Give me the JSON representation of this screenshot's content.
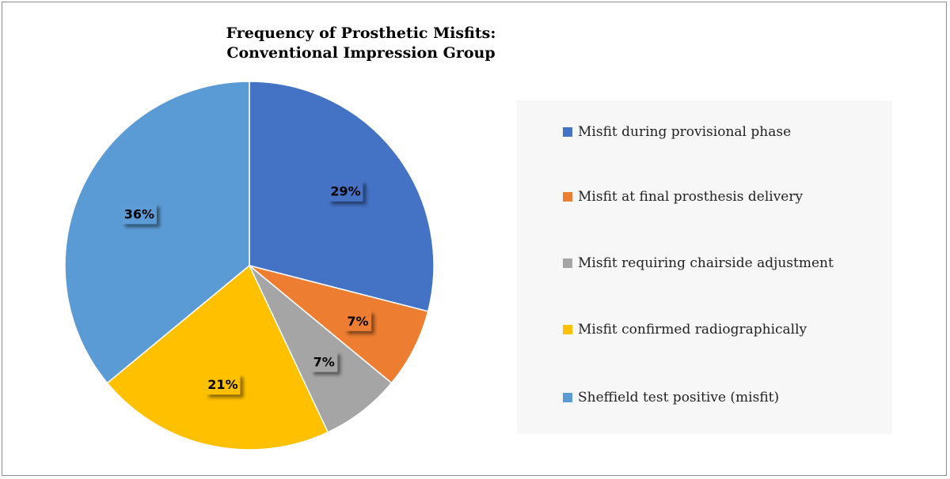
{
  "chart_data": {
    "type": "pie",
    "title": [
      "Frequency of Prosthetic Misfits:",
      "Conventional Impression Group"
    ],
    "categories": [
      "Misfit during provisional phase",
      "Misfit at final prosthesis delivery",
      "Misfit requiring chairside adjustment",
      "Misfit confirmed radiographically",
      "Sheffield test positive (misfit)"
    ],
    "values": [
      29,
      7,
      7,
      21,
      36
    ],
    "data_labels": [
      "29%",
      "7%",
      "7%",
      "21%",
      "36%"
    ],
    "colors": [
      "#4472C4",
      "#ED7D31",
      "#A5A5A5",
      "#FFC000",
      "#5B9BD5"
    ],
    "legend_position": "right"
  }
}
